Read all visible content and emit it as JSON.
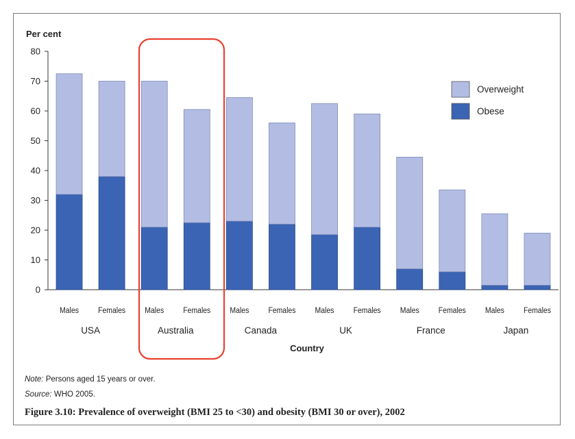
{
  "chart_data": {
    "type": "bar",
    "stacked": true,
    "ylabel": "Per cent",
    "xlabel": "Country",
    "ylim": [
      0,
      80
    ],
    "yticks": [
      0,
      10,
      20,
      30,
      40,
      50,
      60,
      70,
      80
    ],
    "grid": false,
    "legend_position": "top-right",
    "categories": [
      "Males",
      "Females",
      "Males",
      "Females",
      "Males",
      "Females",
      "Males",
      "Females",
      "Males",
      "Females",
      "Males",
      "Females"
    ],
    "groups": [
      "USA",
      "Australia",
      "Canada",
      "UK",
      "France",
      "Japan"
    ],
    "series": [
      {
        "name": "Obese",
        "color": "#3b64b4",
        "values": [
          32,
          38,
          21,
          22.5,
          23,
          22,
          18.5,
          21,
          7,
          6,
          1.5,
          1.5
        ]
      },
      {
        "name": "Overweight",
        "color": "#b3bde3",
        "values": [
          40.5,
          32,
          49,
          38,
          41.5,
          34,
          44,
          38,
          37.5,
          27.5,
          24,
          17.5
        ]
      }
    ],
    "legend": [
      "Overweight",
      "Obese"
    ],
    "highlight_group": "Australia",
    "highlight_color": "#e8402f"
  },
  "note": {
    "label": "Note:",
    "text": " Persons aged 15 years or over."
  },
  "source": {
    "label": "Source:",
    "text": " WHO 2005."
  },
  "caption": "Figure 3.10: Prevalence of overweight (BMI 25 to <30) and obesity (BMI 30 or over), 2002"
}
